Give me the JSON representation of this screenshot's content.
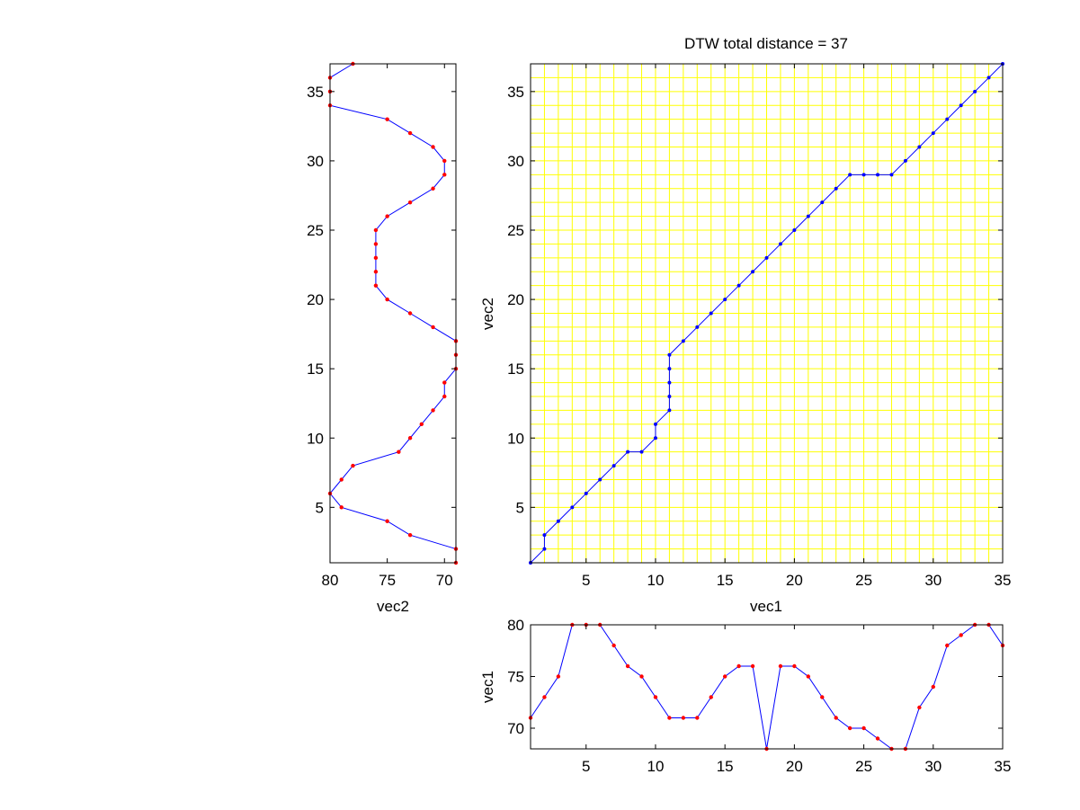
{
  "colors": {
    "background": "#ffffff",
    "axes": "#000000",
    "path_line": "#0000ff",
    "signal_marker": "#ff0000",
    "grid": "#ffff00"
  },
  "chart_data": [
    {
      "id": "dtw",
      "type": "line",
      "title": "DTW total distance = 37",
      "xlabel": "vec1",
      "ylabel": "vec2",
      "xlim": [
        1,
        35
      ],
      "ylim": [
        1,
        37
      ],
      "xticks": [
        5,
        10,
        15,
        20,
        25,
        30,
        35
      ],
      "yticks": [
        5,
        10,
        15,
        20,
        25,
        30,
        35
      ],
      "grid": true,
      "grid_style": "unit cells, yellow",
      "marker_color": "blue",
      "x": [
        1,
        2,
        2,
        3,
        4,
        5,
        6,
        7,
        8,
        9,
        10,
        10,
        11,
        11,
        11,
        11,
        11,
        12,
        13,
        14,
        15,
        16,
        17,
        18,
        19,
        20,
        21,
        22,
        23,
        24,
        25,
        26,
        27,
        28,
        29,
        30,
        31,
        32,
        33,
        34,
        35
      ],
      "y": [
        1,
        2,
        3,
        4,
        5,
        6,
        7,
        8,
        9,
        9,
        10,
        11,
        12,
        13,
        14,
        15,
        16,
        17,
        18,
        19,
        20,
        21,
        22,
        23,
        24,
        25,
        26,
        27,
        28,
        29,
        29,
        29,
        29,
        30,
        31,
        32,
        33,
        34,
        35,
        36,
        37
      ]
    },
    {
      "id": "vec2",
      "type": "line",
      "orientation": "vertical",
      "xlabel": "vec2",
      "value_axis": "horizontal, reversed",
      "xlim": [
        80,
        69
      ],
      "ylim": [
        1,
        37
      ],
      "xticks": [
        80,
        75,
        70
      ],
      "yticks": [
        5,
        10,
        15,
        20,
        25,
        30,
        35
      ],
      "marker_color": "red",
      "index": [
        1,
        2,
        3,
        4,
        5,
        6,
        7,
        8,
        9,
        10,
        11,
        12,
        13,
        14,
        15,
        16,
        17,
        18,
        19,
        20,
        21,
        22,
        23,
        24,
        25,
        26,
        27,
        28,
        29,
        30,
        31,
        32,
        33,
        34,
        35,
        36,
        37
      ],
      "values": [
        69,
        69,
        73,
        75,
        79,
        80,
        79,
        78,
        74,
        73,
        72,
        71,
        70,
        70,
        69,
        69,
        69,
        71,
        73,
        75,
        76,
        76,
        76,
        76,
        76,
        75,
        73,
        71,
        70,
        70,
        71,
        73,
        75,
        80,
        80,
        80,
        78
      ]
    },
    {
      "id": "vec1",
      "type": "line",
      "ylabel": "vec1",
      "xlim": [
        1,
        35
      ],
      "ylim": [
        68,
        80
      ],
      "xticks": [
        5,
        10,
        15,
        20,
        25,
        30,
        35
      ],
      "yticks": [
        70,
        75,
        80
      ],
      "marker_color": "red",
      "x": [
        1,
        2,
        3,
        4,
        5,
        6,
        7,
        8,
        9,
        10,
        11,
        12,
        13,
        14,
        15,
        16,
        17,
        18,
        19,
        20,
        21,
        22,
        23,
        24,
        25,
        26,
        27,
        28,
        29,
        30,
        31,
        32,
        33,
        34,
        35
      ],
      "values": [
        71,
        73,
        75,
        80,
        80,
        80,
        78,
        76,
        75,
        73,
        71,
        71,
        71,
        73,
        75,
        76,
        76,
        68,
        76,
        76,
        75,
        73,
        71,
        70,
        70,
        69,
        68,
        68,
        72,
        74,
        78,
        79,
        80,
        80,
        78
      ]
    }
  ]
}
